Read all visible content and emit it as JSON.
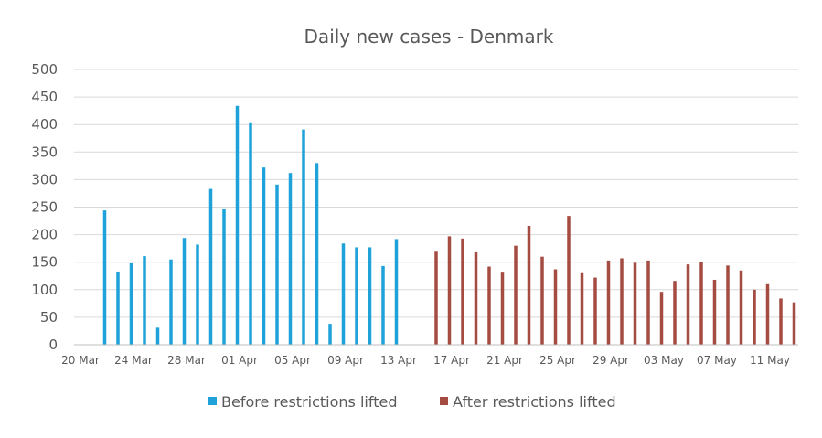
{
  "chart_data": {
    "type": "bar",
    "title": "Daily new cases - Denmark",
    "xlabel": "",
    "ylabel": "",
    "ylim": [
      0,
      500
    ],
    "yticks": [
      "0",
      "50",
      "100",
      "150",
      "200",
      "250",
      "300",
      "350",
      "400",
      "450",
      "500"
    ],
    "grid": true,
    "legend_position": "bottom",
    "x_tick_labels": [
      "20 Mar",
      "24 Mar",
      "28 Mar",
      "01 Apr",
      "05 Apr",
      "09 Apr",
      "13 Apr",
      "17 Apr",
      "21 Apr",
      "25 Apr",
      "29 Apr",
      "03 May",
      "07 May",
      "11 May"
    ],
    "series": [
      {
        "name": "Before restrictions lifted",
        "color": "#1fa2d9",
        "x": [
          "21 Mar",
          "22 Mar",
          "23 Mar",
          "24 Mar",
          "25 Mar",
          "26 Mar",
          "27 Mar",
          "28 Mar",
          "29 Mar",
          "30 Mar",
          "31 Mar",
          "01 Apr",
          "02 Apr",
          "03 Apr",
          "04 Apr",
          "05 Apr",
          "06 Apr",
          "07 Apr",
          "08 Apr",
          "09 Apr",
          "10 Apr",
          "11 Apr",
          "12 Apr",
          "13 Apr"
        ],
        "values": [
          244,
          133,
          148,
          161,
          31,
          155,
          194,
          182,
          283,
          246,
          434,
          404,
          322,
          291,
          312,
          391,
          330,
          38,
          184,
          177,
          177,
          143,
          192,
          0
        ]
      },
      {
        "name": "After restrictions lifted",
        "color": "#a44b42",
        "x": [
          "15 Apr",
          "16 Apr",
          "17 Apr",
          "18 Apr",
          "19 Apr",
          "20 Apr",
          "21 Apr",
          "22 Apr",
          "23 Apr",
          "24 Apr",
          "25 Apr",
          "26 Apr",
          "27 Apr",
          "28 Apr",
          "29 Apr",
          "30 Apr",
          "01 May",
          "02 May",
          "03 May",
          "04 May",
          "05 May",
          "06 May",
          "07 May",
          "08 May",
          "09 May",
          "10 May",
          "11 May",
          "12 May",
          "13 May"
        ],
        "values": [
          169,
          197,
          193,
          168,
          142,
          131,
          180,
          216,
          160,
          137,
          234,
          130,
          122,
          153,
          157,
          149,
          153,
          96,
          116,
          146,
          150,
          118,
          144,
          135,
          100,
          110,
          84,
          77,
          0
        ]
      }
    ]
  }
}
